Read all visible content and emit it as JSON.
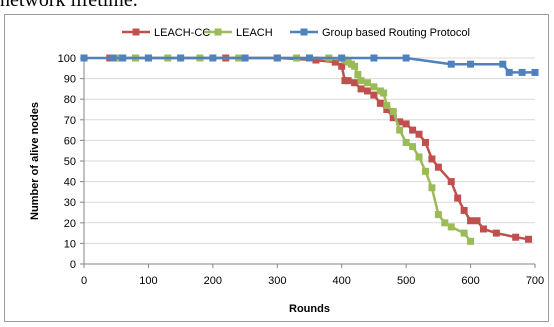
{
  "caption_fragment": "network lifetime.",
  "chart_data": {
    "type": "line",
    "title": "",
    "xlabel": "Rounds",
    "ylabel": "Number of alive nodes",
    "xlim": [
      0,
      700
    ],
    "ylim": [
      0,
      100
    ],
    "x_ticks": [
      0,
      100,
      200,
      300,
      400,
      500,
      600,
      700
    ],
    "y_ticks": [
      0,
      10,
      20,
      30,
      40,
      50,
      60,
      70,
      80,
      90,
      100
    ],
    "grid": "horizontal",
    "legend": "top",
    "series": [
      {
        "name": "LEACH-CC",
        "color": "#c0504d",
        "marker": "square",
        "points": [
          [
            40,
            100
          ],
          [
            60,
            100
          ],
          [
            80,
            100
          ],
          [
            100,
            100
          ],
          [
            180,
            100
          ],
          [
            220,
            100
          ],
          [
            300,
            100
          ],
          [
            360,
            99
          ],
          [
            390,
            98
          ],
          [
            400,
            96
          ],
          [
            405,
            89
          ],
          [
            410,
            89
          ],
          [
            420,
            88
          ],
          [
            430,
            85
          ],
          [
            440,
            84
          ],
          [
            450,
            82
          ],
          [
            460,
            78
          ],
          [
            470,
            75
          ],
          [
            480,
            71
          ],
          [
            490,
            69
          ],
          [
            500,
            68
          ],
          [
            510,
            65
          ],
          [
            520,
            63
          ],
          [
            530,
            59
          ],
          [
            540,
            51
          ],
          [
            550,
            47
          ],
          [
            570,
            40
          ],
          [
            580,
            32
          ],
          [
            590,
            26
          ],
          [
            600,
            21
          ],
          [
            610,
            21
          ],
          [
            620,
            17
          ],
          [
            640,
            15
          ],
          [
            670,
            13
          ],
          [
            690,
            12
          ]
        ]
      },
      {
        "name": "LEACH",
        "color": "#9bbb59",
        "marker": "square",
        "points": [
          [
            50,
            100
          ],
          [
            80,
            100
          ],
          [
            130,
            100
          ],
          [
            180,
            100
          ],
          [
            240,
            100
          ],
          [
            330,
            100
          ],
          [
            380,
            100
          ],
          [
            405,
            99
          ],
          [
            410,
            98
          ],
          [
            415,
            97
          ],
          [
            420,
            96
          ],
          [
            425,
            92
          ],
          [
            430,
            89
          ],
          [
            440,
            88
          ],
          [
            450,
            86
          ],
          [
            460,
            84
          ],
          [
            465,
            83
          ],
          [
            470,
            77
          ],
          [
            480,
            74
          ],
          [
            490,
            65
          ],
          [
            500,
            59
          ],
          [
            510,
            57
          ],
          [
            520,
            52
          ],
          [
            530,
            45
          ],
          [
            540,
            37
          ],
          [
            550,
            24
          ],
          [
            560,
            20
          ],
          [
            570,
            18
          ],
          [
            590,
            15
          ],
          [
            600,
            11
          ]
        ]
      },
      {
        "name": "Group based Routing Protocol",
        "color": "#4f81bd",
        "marker": "square",
        "points": [
          [
            0,
            100
          ],
          [
            45,
            100
          ],
          [
            60,
            100
          ],
          [
            100,
            100
          ],
          [
            150,
            100
          ],
          [
            200,
            100
          ],
          [
            250,
            100
          ],
          [
            300,
            100
          ],
          [
            350,
            100
          ],
          [
            400,
            100
          ],
          [
            450,
            100
          ],
          [
            500,
            100
          ],
          [
            570,
            97
          ],
          [
            600,
            97
          ],
          [
            650,
            97
          ],
          [
            660,
            93
          ],
          [
            680,
            93
          ],
          [
            700,
            93
          ]
        ]
      }
    ]
  }
}
